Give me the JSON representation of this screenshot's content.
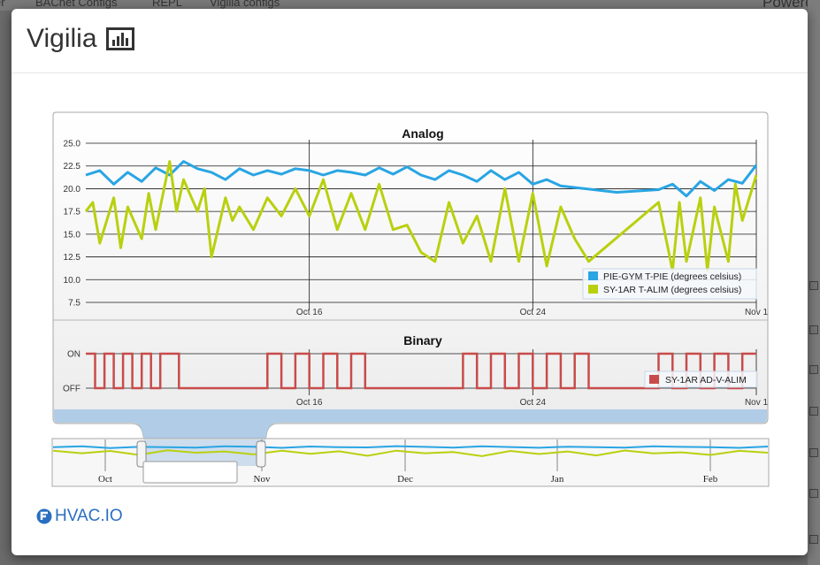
{
  "background_nav": {
    "items": [
      "er",
      "BACnet Configs",
      "REPL",
      "Vigilia configs"
    ],
    "right_text": "Powered"
  },
  "modal": {
    "title": "Vigilia",
    "title_icon": "bar-chart-icon",
    "footer_logo": "HVAC.IO"
  },
  "colors": {
    "series_blue": "#29a5e3",
    "series_green": "#b9d00f",
    "series_red": "#c84b4b",
    "navigator_selection": "#b0cce6",
    "logo_blue": "#2a6fc1"
  },
  "chart_data": [
    {
      "type": "line",
      "title": "Analog",
      "xlabel": "",
      "ylabel": "",
      "x_ticks": [
        "Oct 16",
        "Oct 24",
        "Nov 1"
      ],
      "xlim": [
        "2015-10-08",
        "2015-11-01"
      ],
      "ylim": [
        7.5,
        25.0
      ],
      "y_ticks": [
        "25.0",
        "22.5",
        "20.0",
        "17.5",
        "15.0",
        "12.5",
        "10.0",
        "7.5"
      ],
      "grid": true,
      "legend_position": "bottom-right",
      "series": [
        {
          "name": "PIE-GYM T-PIE (degrees celsius)",
          "x": [
            "2015-10-08",
            "2015-10-08T12",
            "2015-10-09",
            "2015-10-09T12",
            "2015-10-10",
            "2015-10-10T12",
            "2015-10-11",
            "2015-10-11T12",
            "2015-10-12",
            "2015-10-12T12",
            "2015-10-13",
            "2015-10-13T12",
            "2015-10-14",
            "2015-10-14T12",
            "2015-10-15",
            "2015-10-15T12",
            "2015-10-16",
            "2015-10-16T12",
            "2015-10-17",
            "2015-10-17T12",
            "2015-10-18",
            "2015-10-18T12",
            "2015-10-19",
            "2015-10-19T12",
            "2015-10-20",
            "2015-10-20T12",
            "2015-10-21",
            "2015-10-21T12",
            "2015-10-22",
            "2015-10-22T12",
            "2015-10-23",
            "2015-10-23T12",
            "2015-10-24",
            "2015-10-24T12",
            "2015-10-25",
            "2015-10-27",
            "2015-10-28T12",
            "2015-10-29",
            "2015-10-29T12",
            "2015-10-30",
            "2015-10-30T12",
            "2015-10-31",
            "2015-10-31T12",
            "2015-11-01"
          ],
          "values": [
            21.5,
            22.0,
            20.5,
            21.8,
            20.8,
            22.3,
            21.5,
            23.0,
            22.2,
            21.8,
            21.0,
            22.2,
            21.5,
            22.0,
            21.6,
            22.2,
            22.0,
            21.5,
            22.0,
            21.8,
            21.5,
            22.3,
            21.6,
            22.4,
            21.5,
            21.0,
            22.0,
            21.5,
            20.8,
            22.0,
            21.0,
            21.8,
            20.5,
            21.0,
            20.3,
            19.6,
            19.9,
            20.5,
            19.2,
            20.8,
            19.8,
            21.0,
            20.6,
            22.6
          ]
        },
        {
          "name": "SY-1AR T-ALIM (degrees celsius)",
          "x": [
            "2015-10-08",
            "2015-10-08T06",
            "2015-10-08T12",
            "2015-10-09",
            "2015-10-09T06",
            "2015-10-09T12",
            "2015-10-10",
            "2015-10-10T06",
            "2015-10-10T12",
            "2015-10-11",
            "2015-10-11T06",
            "2015-10-11T12",
            "2015-10-12",
            "2015-10-12T06",
            "2015-10-12T12",
            "2015-10-13",
            "2015-10-13T06",
            "2015-10-13T12",
            "2015-10-14",
            "2015-10-14T12",
            "2015-10-15",
            "2015-10-15T12",
            "2015-10-16",
            "2015-10-16T12",
            "2015-10-17",
            "2015-10-17T12",
            "2015-10-18",
            "2015-10-18T12",
            "2015-10-19",
            "2015-10-19T12",
            "2015-10-20",
            "2015-10-20T12",
            "2015-10-21",
            "2015-10-21T12",
            "2015-10-22",
            "2015-10-22T12",
            "2015-10-23",
            "2015-10-23T12",
            "2015-10-24",
            "2015-10-24T12",
            "2015-10-25",
            "2015-10-25T12",
            "2015-10-26",
            "2015-10-28T12",
            "2015-10-29",
            "2015-10-29T06",
            "2015-10-29T12",
            "2015-10-30",
            "2015-10-30T06",
            "2015-10-30T12",
            "2015-10-31",
            "2015-10-31T06",
            "2015-10-31T12",
            "2015-11-01"
          ],
          "values": [
            17.5,
            18.5,
            14.0,
            19.0,
            13.5,
            18.0,
            14.5,
            19.5,
            15.5,
            23.0,
            17.5,
            21.0,
            17.5,
            20.0,
            12.5,
            19.0,
            16.5,
            18.0,
            15.5,
            19.0,
            17.0,
            20.0,
            17.0,
            21.0,
            15.5,
            19.5,
            15.5,
            20.5,
            15.5,
            16.0,
            13.0,
            12.0,
            18.5,
            14.0,
            17.0,
            12.0,
            20.0,
            12.0,
            19.5,
            11.5,
            18.0,
            14.5,
            12.0,
            18.5,
            11.0,
            18.5,
            12.0,
            19.0,
            11.0,
            18.0,
            12.0,
            20.5,
            16.5,
            21.5
          ]
        }
      ]
    },
    {
      "type": "line",
      "title": "Binary",
      "xlabel": "",
      "ylabel": "",
      "x_ticks": [
        "Oct 16",
        "Oct 24",
        "Nov 1"
      ],
      "xlim": [
        "2015-10-08",
        "2015-11-01"
      ],
      "y_ticks": [
        "ON",
        "OFF"
      ],
      "grid": true,
      "legend_position": "bottom-right",
      "series": [
        {
          "name": "SY-1AR AD-V-ALIM",
          "x": [
            "2015-10-08",
            "2015-10-08T08",
            "2015-10-08T16",
            "2015-10-09",
            "2015-10-09T08",
            "2015-10-09T16",
            "2015-10-10",
            "2015-10-10T08",
            "2015-10-10T16",
            "2015-10-11",
            "2015-10-11T08",
            "2015-10-11T16",
            "2015-10-14",
            "2015-10-14T12",
            "2015-10-15",
            "2015-10-15T12",
            "2015-10-16",
            "2015-10-16T12",
            "2015-10-17",
            "2015-10-17T12",
            "2015-10-18",
            "2015-10-18T12",
            "2015-10-21",
            "2015-10-21T12",
            "2015-10-22",
            "2015-10-22T12",
            "2015-10-23",
            "2015-10-23T12",
            "2015-10-24",
            "2015-10-24T12",
            "2015-10-25",
            "2015-10-25T12",
            "2015-10-26",
            "2015-10-27",
            "2015-10-28T12",
            "2015-10-29",
            "2015-10-29T12",
            "2015-10-30",
            "2015-10-30T12",
            "2015-10-31",
            "2015-10-31T12",
            "2015-11-01"
          ],
          "values": [
            1,
            0,
            1,
            0,
            1,
            0,
            1,
            0,
            1,
            1,
            0,
            0,
            0,
            1,
            0,
            1,
            0,
            1,
            0,
            1,
            0,
            0,
            0,
            1,
            0,
            1,
            0,
            1,
            0,
            1,
            0,
            1,
            0,
            0,
            1,
            0,
            1,
            0,
            1,
            0,
            1,
            1
          ]
        }
      ]
    },
    {
      "type": "area",
      "title": "",
      "x_ticks": [
        "Oct",
        "Nov",
        "Dec",
        "Jan",
        "Feb"
      ],
      "selected_range": [
        "2015-10-08",
        "2015-11-01"
      ],
      "series": [
        {
          "name": "",
          "values": [
            21.0,
            21.5,
            20.5,
            21.2,
            21.0,
            20.8,
            21.5,
            21.3,
            20.6,
            21.4,
            21.0,
            20.9,
            21.6,
            21.2,
            20.8,
            21.5,
            21.1,
            20.7,
            21.3,
            21.0,
            20.8,
            21.5,
            21.2,
            21.0,
            20.6,
            21.4
          ]
        },
        {
          "name": "",
          "values": [
            19.0,
            17.5,
            18.8,
            16.5,
            19.2,
            17.8,
            18.5,
            16.8,
            19.0,
            17.2,
            18.6,
            16.0,
            19.0,
            17.5,
            18.2,
            15.8,
            18.8,
            17.0,
            18.5,
            16.2,
            19.1,
            17.4,
            18.0,
            16.5,
            18.9,
            17.8
          ]
        }
      ]
    }
  ]
}
